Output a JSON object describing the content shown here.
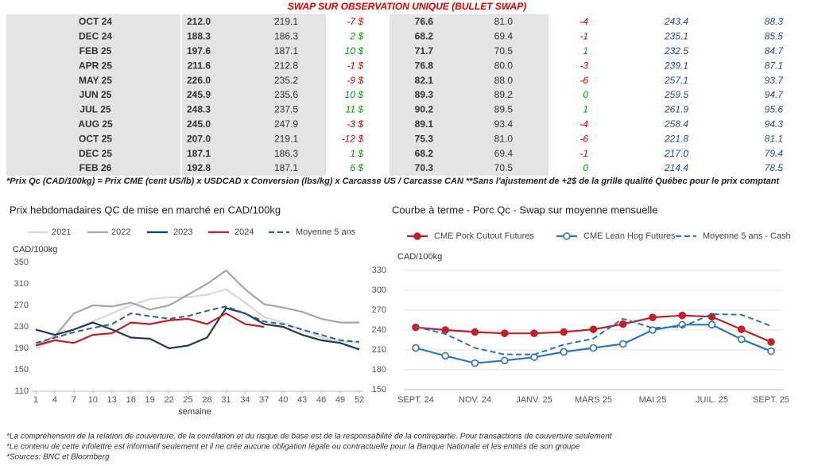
{
  "table": {
    "title": "SWAP SUR OBSERVATION UNIQUE (BULLET SWAP)",
    "rows": [
      [
        "OCT 24",
        "212.0",
        "219.1",
        "-7 $",
        "76.6",
        "81.0",
        "-4",
        "243.4",
        "88.3"
      ],
      [
        "DEC 24",
        "188.3",
        "186.3",
        "2 $",
        "68.2",
        "69.4",
        "-1",
        "235.1",
        "85.5"
      ],
      [
        "FEB 25",
        "197.6",
        "187.1",
        "10 $",
        "71.7",
        "70.5",
        "1",
        "232.5",
        "84.7"
      ],
      [
        "APR 25",
        "211.6",
        "212.8",
        "-1 $",
        "76.8",
        "80.0",
        "-3",
        "239.1",
        "87.1"
      ],
      [
        "MAY 25",
        "226.0",
        "235.2",
        "-9 $",
        "82.1",
        "88.0",
        "-6",
        "257.1",
        "93.7"
      ],
      [
        "JUN 25",
        "245.9",
        "235.6",
        "10 $",
        "89.3",
        "89.2",
        "0",
        "259.5",
        "94.7"
      ],
      [
        "JUL 25",
        "248.3",
        "237.5",
        "11 $",
        "90.2",
        "89.5",
        "1",
        "261.9",
        "95.6"
      ],
      [
        "AUG 25",
        "245.0",
        "247.9",
        "-3 $",
        "89.1",
        "93.4",
        "-4",
        "258.4",
        "94.3"
      ],
      [
        "OCT 25",
        "207.0",
        "219.1",
        "-12 $",
        "75.3",
        "81.0",
        "-6",
        "221.8",
        "81.1"
      ],
      [
        "DEC 25",
        "187.1",
        "186.3",
        "1 $",
        "68.2",
        "69.4",
        "-1",
        "217.0",
        "79.4"
      ],
      [
        "FEB 26",
        "192.8",
        "187.1",
        "6 $",
        "70.3",
        "70.5",
        "0",
        "214.4",
        "78.5"
      ]
    ]
  },
  "note": "*Prix Qc (CAD/100kg) = Prix CME (cent US/lb) x USDCAD x Conversion (lbs/kg) x Carcasse US / Carcasse CAN **Sans l'ajustement de +2$ de la grille qualité Québec pour le prix comptant",
  "chart_data": [
    {
      "type": "line",
      "title": "Prix hebdomadaires QC de mise en marché en CAD/100kg",
      "ylabel": "CAD/100kg",
      "xlabel": "semaine",
      "x": [
        1,
        4,
        7,
        10,
        13,
        16,
        19,
        22,
        25,
        28,
        31,
        34,
        37,
        40,
        43,
        46,
        49,
        52
      ],
      "xlim": [
        1,
        52
      ],
      "xticks": [
        1,
        4,
        7,
        10,
        13,
        16,
        19,
        22,
        25,
        28,
        31,
        34,
        37,
        40,
        43,
        46,
        49,
        52
      ],
      "ylim": [
        110,
        350
      ],
      "yticks": [
        110,
        150,
        190,
        230,
        270,
        310,
        350
      ],
      "grid": false,
      "series": [
        {
          "name": "2021",
          "color": "#d9d9d9",
          "style": "solid",
          "values": [
            190,
            205,
            225,
            240,
            255,
            270,
            282,
            285,
            285,
            290,
            300,
            275,
            248,
            238,
            225,
            210,
            203,
            200
          ]
        },
        {
          "name": "2022",
          "color": "#a6a6a6",
          "style": "solid",
          "values": [
            195,
            212,
            255,
            270,
            268,
            275,
            262,
            270,
            290,
            310,
            335,
            300,
            272,
            266,
            258,
            245,
            238,
            238
          ]
        },
        {
          "name": "2023",
          "color": "#1f3b57",
          "style": "solid",
          "values": [
            225,
            215,
            225,
            238,
            225,
            210,
            208,
            190,
            195,
            210,
            265,
            255,
            235,
            230,
            215,
            205,
            200,
            188
          ]
        },
        {
          "name": "2024",
          "color": "#c0202a",
          "style": "solid",
          "values": [
            195,
            205,
            200,
            215,
            218,
            238,
            235,
            242,
            245,
            235,
            255,
            235,
            230,
            null,
            null,
            null,
            null,
            null
          ]
        },
        {
          "name": "Moyenne 5 ans",
          "color": "#2e5f9e",
          "style": "dashed",
          "values": [
            200,
            210,
            220,
            228,
            235,
            255,
            250,
            245,
            250,
            260,
            268,
            255,
            240,
            235,
            225,
            215,
            205,
            202
          ]
        }
      ]
    },
    {
      "type": "line",
      "title": "Courbe à terme - Porc Qc - Swap sur moyenne mensuelle",
      "ylabel": "CAD/100kg",
      "categories": [
        "SEPT. 24",
        null,
        "NOV. 24",
        null,
        "JANV. 25",
        null,
        "MARS 25",
        null,
        "MAI 25",
        null,
        "JUIL. 25",
        null,
        "SEPT. 25"
      ],
      "ylim": [
        150,
        330
      ],
      "yticks": [
        150,
        180,
        210,
        240,
        270,
        300,
        330
      ],
      "grid": true,
      "series": [
        {
          "name": "CME Pork Cutout Futures",
          "color": "#c0202a",
          "style": "solid",
          "marker": "filled",
          "values": [
            244,
            240,
            237,
            235,
            235,
            237,
            241,
            249,
            259,
            262,
            260,
            241,
            222
          ]
        },
        {
          "name": "CME Lean Hog Futures",
          "color": "#2e75b6",
          "style": "solid",
          "marker": "open",
          "values": [
            213,
            201,
            190,
            194,
            199,
            207,
            213,
            219,
            240,
            248,
            248,
            226,
            208
          ]
        },
        {
          "name": "Moyenne 5 ans - Cash",
          "color": "#2e75b6",
          "style": "dashed",
          "values": [
            245,
            234,
            213,
            203,
            203,
            218,
            227,
            257,
            243,
            245,
            264,
            263,
            246
          ]
        }
      ]
    }
  ],
  "footnotes": [
    "*La compréhension de la relation de couverture, de la corrélation et du risque de base est de la responsabilité de la contrepartie. Pour transactions de couverture seulement",
    "*Le contenu de cette infolettre est informatif seulement et il ne crée aucune obligation légale ou contractuelle pour la Banque Nationale et les entités de son groupe",
    "*Sources: BNC et Bloomberg"
  ]
}
